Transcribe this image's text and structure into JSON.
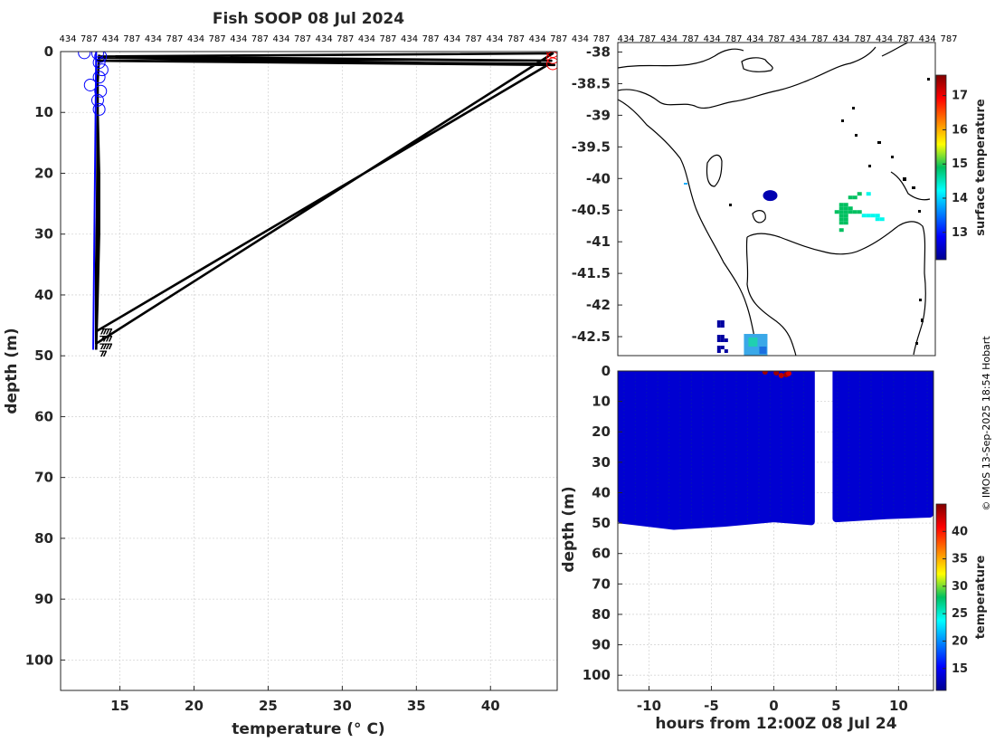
{
  "title": "Fish SOOP 08 Jul 2024",
  "credit": "© IMOS 13-Sep-2025 18:54 Hobart",
  "chart_data": [
    {
      "type": "line",
      "panel": "profile",
      "xlabel": "temperature (° C)",
      "ylabel": "depth (m)",
      "xlim": [
        11,
        44.5
      ],
      "ylim": [
        105,
        0
      ],
      "x_ticks": [
        "15",
        "20",
        "25",
        "30",
        "35",
        "40"
      ],
      "y_ticks": [
        "0",
        "10",
        "20",
        "30",
        "40",
        "50",
        "60",
        "70",
        "80",
        "90",
        "100"
      ],
      "top_labels": [
        "434",
        "787",
        "434",
        "787",
        "434",
        "787",
        "434",
        "787",
        "434",
        "787",
        "434",
        "787",
        "434",
        "787",
        "434",
        "787",
        "434",
        "787",
        "434",
        "787",
        "434",
        "787",
        "434",
        "787",
        "434",
        "787"
      ],
      "grid": true,
      "series": [
        {
          "color": "#000000",
          "x": [
            13.6,
            13.5,
            13.5,
            13.4,
            13.4,
            44.2,
            13.7,
            44.1,
            13.6,
            44.3,
            13.5,
            44.0,
            13.4,
            13.5,
            13.6,
            13.6,
            13.5,
            13.4
          ],
          "y": [
            0.5,
            5,
            20,
            35,
            48,
            0.3,
            0.8,
            1.5,
            1.0,
            2.2,
            1.5,
            2.0,
            46,
            10,
            20,
            30,
            40,
            49
          ]
        }
      ],
      "blue_circles": [
        {
          "x": 12.6,
          "y": 0.2
        },
        {
          "x": 13.5,
          "y": 0.3
        },
        {
          "x": 13.7,
          "y": 0.8
        },
        {
          "x": 13.6,
          "y": 1.8
        },
        {
          "x": 13.8,
          "y": 3.0
        },
        {
          "x": 13.6,
          "y": 4.2
        },
        {
          "x": 13.0,
          "y": 5.5
        },
        {
          "x": 13.7,
          "y": 6.5
        },
        {
          "x": 13.5,
          "y": 8.0
        },
        {
          "x": 13.6,
          "y": 9.5
        }
      ],
      "red_circles": [
        {
          "x": 44.2,
          "y": 0.0
        },
        {
          "x": 44.2,
          "y": 1.0
        },
        {
          "x": 44.2,
          "y": 2.0
        }
      ]
    },
    {
      "type": "heatmap",
      "panel": "map",
      "y_ticks": [
        "-38",
        "-38.5",
        "-39",
        "-39.5",
        "-40",
        "-40.5",
        "-41",
        "-41.5",
        "-42",
        "-42.5"
      ],
      "top_labels": [
        "434",
        "787",
        "434",
        "787",
        "434",
        "787",
        "434",
        "787",
        "434",
        "787",
        "434",
        "787",
        "434",
        "787",
        "434",
        "787"
      ],
      "colorbar_label": "surface temperature",
      "colorbar_ticks": [
        "13",
        "14",
        "15",
        "16",
        "17"
      ],
      "colorbar_range": [
        12.2,
        17.6
      ],
      "patches": [
        {
          "lon": 0.48,
          "lat": -40.27,
          "value": 12.4
        },
        {
          "lon": 0.72,
          "lat": -40.5,
          "value": 14.9
        },
        {
          "lon": 0.44,
          "lat": -42.6,
          "value": 13.8
        },
        {
          "lon": 0.33,
          "lat": -42.5,
          "value": 12.3
        }
      ]
    },
    {
      "type": "scatter",
      "panel": "section",
      "xlabel": "hours from 12:00Z 08 Jul 24",
      "ylabel": "depth (m)",
      "xlim": [
        -12.5,
        12.8
      ],
      "ylim": [
        105,
        0
      ],
      "x_ticks": [
        "-10",
        "-5",
        "0",
        "5",
        "10"
      ],
      "y_ticks": [
        "0",
        "10",
        "20",
        "30",
        "40",
        "50",
        "60",
        "70",
        "80",
        "90",
        "100"
      ],
      "colorbar_label": "temperature",
      "colorbar_ticks": [
        "15",
        "20",
        "25",
        "30",
        "35",
        "40"
      ],
      "colorbar_range": [
        11,
        45
      ],
      "bulk_value": 13.5,
      "data_gap_hours": [
        3.1,
        4.9
      ],
      "max_depth_profile": [
        {
          "t": -12.2,
          "d": 49
        },
        {
          "t": -8,
          "d": 51
        },
        {
          "t": -4,
          "d": 50
        },
        {
          "t": 0,
          "d": 48.5
        },
        {
          "t": 3.0,
          "d": 49.5
        },
        {
          "t": 5.0,
          "d": 48.5
        },
        {
          "t": 9,
          "d": 47.5
        },
        {
          "t": 12.5,
          "d": 47
        }
      ],
      "warm_points": [
        {
          "t": -0.7,
          "d": 0.3,
          "value": 44
        },
        {
          "t": 0.2,
          "d": 0.6,
          "value": 44
        },
        {
          "t": 0.6,
          "d": 1.5,
          "value": 43
        },
        {
          "t": 1.0,
          "d": 1.2,
          "value": 44
        },
        {
          "t": 1.2,
          "d": 0.8,
          "value": 42
        }
      ]
    }
  ]
}
